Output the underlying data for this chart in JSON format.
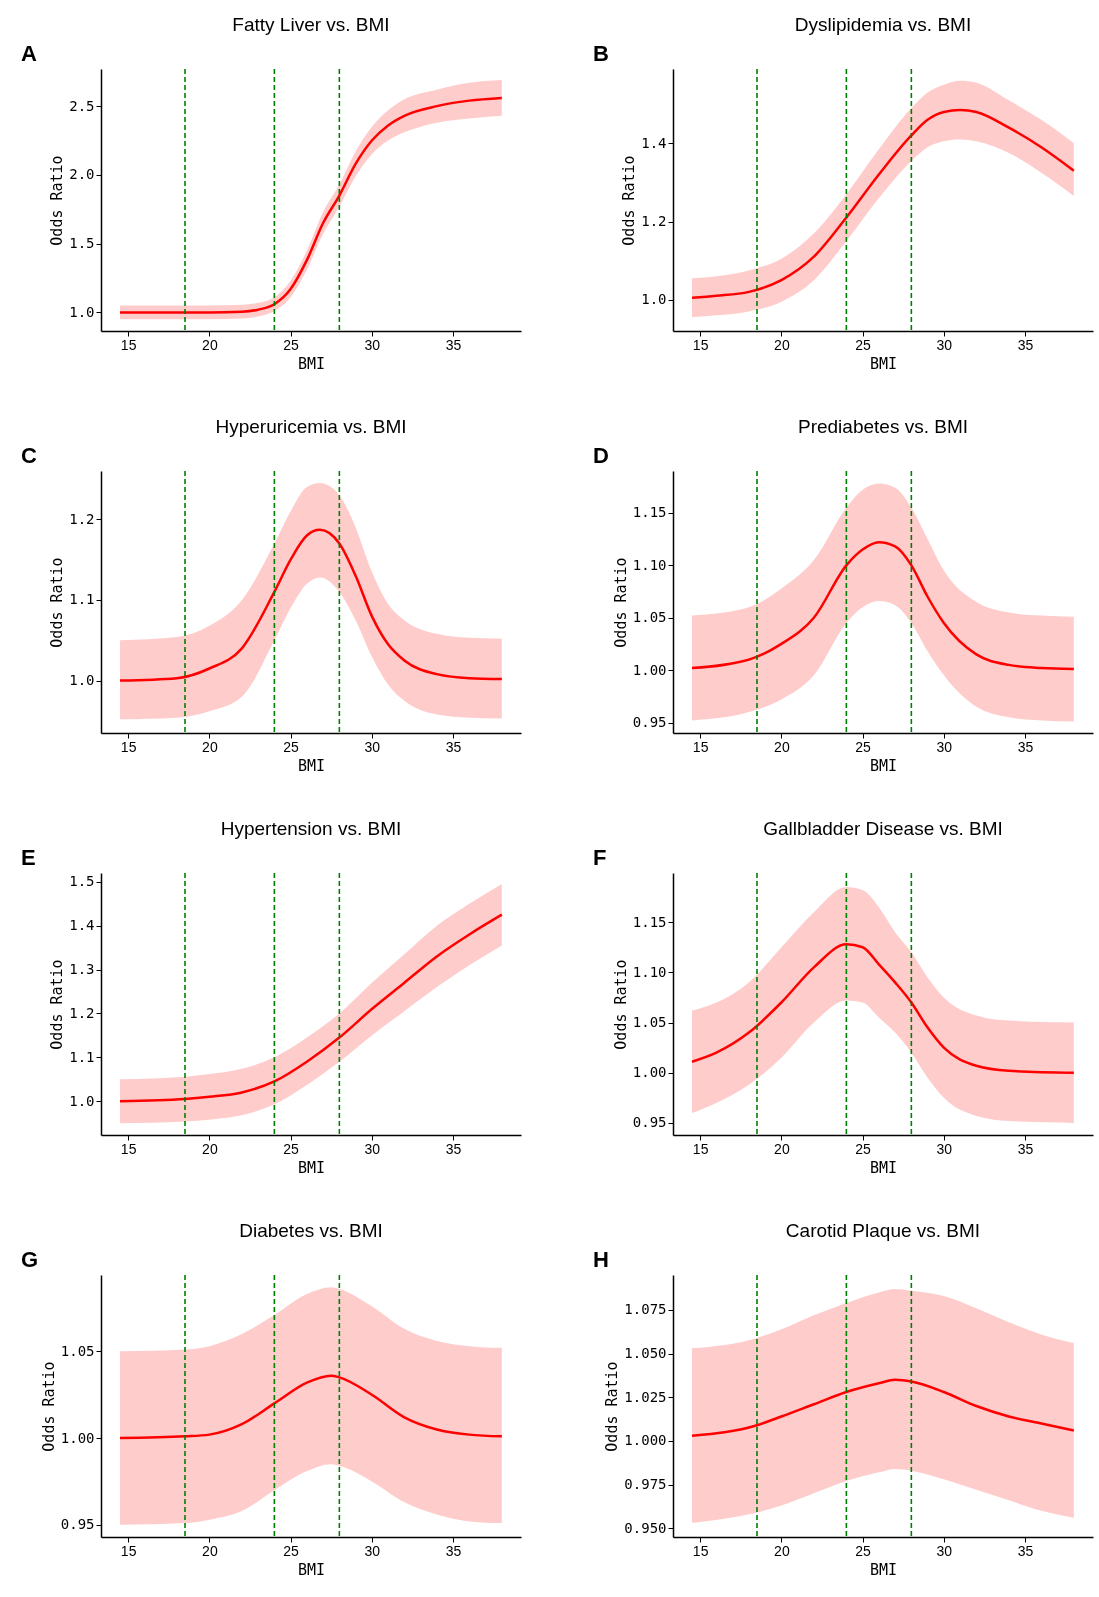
{
  "chart_data": [
    {
      "type": "line",
      "title": "Fatty Liver vs. BMI",
      "xlabel": "BMI",
      "ylabel": "Odds Ratio",
      "annotations": [
        "A"
      ],
      "xlim": [
        13.33,
        39.18
      ],
      "ylim": [
        0.865,
        2.77
      ],
      "xticks": [
        15,
        20,
        25,
        30,
        35
      ],
      "yticks": [
        {
          "value": 1,
          "label": "1.0"
        },
        1.5,
        {
          "value": 2,
          "label": "2.0"
        },
        2.5
      ],
      "grid": false,
      "legend": false,
      "ref_lines": [
        {
          "axis": "x",
          "value": 18.5,
          "color": "#008000",
          "line_style": "dashed"
        },
        {
          "axis": "x",
          "value": 24,
          "color": "#008000",
          "line_style": "dashed"
        },
        {
          "axis": "x",
          "value": 28,
          "color": "#008000",
          "line_style": "dashed"
        }
      ],
      "series": [
        {
          "color": "#ff0000",
          "line_style": "solid",
          "x": [
            14.5,
            18,
            20,
            22,
            23,
            24,
            25,
            26,
            27,
            28,
            29,
            30,
            31,
            32,
            34,
            36,
            38
          ],
          "values": [
            1.0,
            1.0,
            1.0,
            1.005,
            1.02,
            1.06,
            1.17,
            1.38,
            1.65,
            1.85,
            2.08,
            2.25,
            2.36,
            2.43,
            2.5,
            2.54,
            2.56
          ],
          "lower": [
            0.95,
            0.95,
            0.95,
            0.955,
            0.97,
            1.01,
            1.11,
            1.31,
            1.57,
            1.77,
            1.99,
            2.15,
            2.25,
            2.31,
            2.38,
            2.41,
            2.43
          ],
          "upper": [
            1.05,
            1.05,
            1.05,
            1.055,
            1.07,
            1.11,
            1.23,
            1.45,
            1.73,
            1.93,
            2.17,
            2.35,
            2.47,
            2.55,
            2.62,
            2.67,
            2.69
          ]
        }
      ]
    },
    {
      "type": "line",
      "title": "Dyslipidemia vs. BMI",
      "xlabel": "BMI",
      "ylabel": "Odds Ratio",
      "annotations": [
        "B"
      ],
      "xlim": [
        13.33,
        39.18
      ],
      "ylim": [
        0.92,
        1.59
      ],
      "xticks": [
        15,
        20,
        25,
        30,
        35
      ],
      "yticks": [
        {
          "value": 1,
          "label": "1.0"
        },
        1.2,
        1.4
      ],
      "grid": false,
      "legend": false,
      "ref_lines": [
        {
          "axis": "x",
          "value": 18.5,
          "color": "#008000",
          "line_style": "dashed"
        },
        {
          "axis": "x",
          "value": 24,
          "color": "#008000",
          "line_style": "dashed"
        },
        {
          "axis": "x",
          "value": 28,
          "color": "#008000",
          "line_style": "dashed"
        }
      ],
      "series": [
        {
          "color": "#ff0000",
          "line_style": "solid",
          "x": [
            14.5,
            16,
            18,
            20,
            22,
            24,
            26,
            28,
            29,
            30,
            31,
            32,
            34,
            36,
            38
          ],
          "values": [
            1.005,
            1.01,
            1.02,
            1.05,
            1.11,
            1.21,
            1.32,
            1.42,
            1.46,
            1.48,
            1.485,
            1.48,
            1.44,
            1.39,
            1.33
          ],
          "lower": [
            0.955,
            0.96,
            0.97,
            0.995,
            1.05,
            1.15,
            1.26,
            1.355,
            1.39,
            1.405,
            1.41,
            1.405,
            1.375,
            1.325,
            1.265
          ],
          "upper": [
            1.055,
            1.06,
            1.075,
            1.105,
            1.17,
            1.27,
            1.385,
            1.49,
            1.53,
            1.55,
            1.56,
            1.555,
            1.51,
            1.46,
            1.4
          ]
        }
      ]
    },
    {
      "type": "line",
      "title": "Hyperuricemia vs. BMI",
      "xlabel": "BMI",
      "ylabel": "Odds Ratio",
      "annotations": [
        "C"
      ],
      "xlim": [
        13.33,
        39.18
      ],
      "ylim": [
        0.935,
        1.26
      ],
      "xticks": [
        15,
        20,
        25,
        30,
        35
      ],
      "yticks": [
        {
          "value": 1,
          "label": "1.0"
        },
        1.1,
        1.2
      ],
      "grid": false,
      "legend": false,
      "ref_lines": [
        {
          "axis": "x",
          "value": 18.5,
          "color": "#008000",
          "line_style": "dashed"
        },
        {
          "axis": "x",
          "value": 24,
          "color": "#008000",
          "line_style": "dashed"
        },
        {
          "axis": "x",
          "value": 28,
          "color": "#008000",
          "line_style": "dashed"
        }
      ],
      "series": [
        {
          "color": "#ff0000",
          "line_style": "solid",
          "x": [
            14.5,
            18,
            20,
            22,
            24,
            25,
            26,
            26.8,
            28,
            29,
            30,
            31,
            32,
            34,
            36,
            38
          ],
          "values": [
            1.0,
            1.003,
            1.015,
            1.04,
            1.11,
            1.15,
            1.18,
            1.187,
            1.17,
            1.13,
            1.08,
            1.045,
            1.025,
            1.008,
            1.003,
            1.002
          ],
          "lower": [
            0.952,
            0.954,
            0.962,
            0.98,
            1.05,
            1.09,
            1.12,
            1.128,
            1.11,
            1.075,
            1.03,
            0.995,
            0.975,
            0.958,
            0.954,
            0.953
          ],
          "upper": [
            1.05,
            1.054,
            1.068,
            1.1,
            1.17,
            1.21,
            1.24,
            1.245,
            1.23,
            1.19,
            1.135,
            1.095,
            1.075,
            1.058,
            1.053,
            1.052
          ]
        }
      ]
    },
    {
      "type": "line",
      "title": "Prediabetes vs. BMI",
      "xlabel": "BMI",
      "ylabel": "Odds Ratio",
      "annotations": [
        "D"
      ],
      "xlim": [
        13.33,
        39.18
      ],
      "ylim": [
        0.94,
        1.19
      ],
      "xticks": [
        15,
        20,
        25,
        30,
        35
      ],
      "yticks": [
        0.95,
        {
          "value": 1,
          "label": "1.00"
        },
        1.05,
        {
          "value": 1.1,
          "label": "1.10"
        },
        1.15
      ],
      "grid": false,
      "legend": false,
      "ref_lines": [
        {
          "axis": "x",
          "value": 18.5,
          "color": "#008000",
          "line_style": "dashed"
        },
        {
          "axis": "x",
          "value": 24,
          "color": "#008000",
          "line_style": "dashed"
        },
        {
          "axis": "x",
          "value": 28,
          "color": "#008000",
          "line_style": "dashed"
        }
      ],
      "series": [
        {
          "color": "#ff0000",
          "line_style": "solid",
          "x": [
            14.5,
            18,
            20,
            22,
            24,
            25,
            26,
            27,
            28,
            29,
            30,
            32,
            34,
            36,
            38
          ],
          "values": [
            1.002,
            1.01,
            1.025,
            1.05,
            1.1,
            1.115,
            1.122,
            1.118,
            1.1,
            1.07,
            1.045,
            1.015,
            1.005,
            1.002,
            1.001
          ],
          "lower": [
            0.952,
            0.96,
            0.972,
            0.995,
            1.045,
            1.06,
            1.066,
            1.062,
            1.045,
            1.018,
            0.995,
            0.965,
            0.955,
            0.952,
            0.951
          ],
          "upper": [
            1.052,
            1.06,
            1.078,
            1.105,
            1.155,
            1.172,
            1.178,
            1.174,
            1.155,
            1.125,
            1.095,
            1.065,
            1.055,
            1.052,
            1.051
          ]
        }
      ]
    },
    {
      "type": "line",
      "title": "Hypertension vs. BMI",
      "xlabel": "BMI",
      "ylabel": "Odds Ratio",
      "annotations": [
        "E"
      ],
      "xlim": [
        13.33,
        39.18
      ],
      "ylim": [
        0.923,
        1.52
      ],
      "xticks": [
        15,
        20,
        25,
        30,
        35
      ],
      "yticks": [
        {
          "value": 1,
          "label": "1.0"
        },
        1.1,
        1.2,
        1.3,
        1.4,
        1.5
      ],
      "grid": false,
      "legend": false,
      "ref_lines": [
        {
          "axis": "x",
          "value": 18.5,
          "color": "#008000",
          "line_style": "dashed"
        },
        {
          "axis": "x",
          "value": 24,
          "color": "#008000",
          "line_style": "dashed"
        },
        {
          "axis": "x",
          "value": 28,
          "color": "#008000",
          "line_style": "dashed"
        }
      ],
      "series": [
        {
          "color": "#ff0000",
          "line_style": "solid",
          "x": [
            14.5,
            18.5,
            20,
            22,
            24,
            26,
            28,
            30,
            32,
            34,
            36,
            38
          ],
          "values": [
            1.0,
            1.005,
            1.01,
            1.02,
            1.045,
            1.09,
            1.145,
            1.21,
            1.27,
            1.33,
            1.38,
            1.425
          ],
          "lower": [
            0.95,
            0.954,
            0.958,
            0.968,
            0.993,
            1.037,
            1.09,
            1.15,
            1.205,
            1.26,
            1.31,
            1.355
          ],
          "upper": [
            1.05,
            1.056,
            1.062,
            1.074,
            1.1,
            1.145,
            1.2,
            1.27,
            1.335,
            1.4,
            1.45,
            1.495
          ]
        }
      ]
    },
    {
      "type": "line",
      "title": "Gallbladder Disease vs. BMI",
      "xlabel": "BMI",
      "ylabel": "Odds Ratio",
      "annotations": [
        "F"
      ],
      "xlim": [
        13.33,
        39.18
      ],
      "ylim": [
        0.938,
        1.199
      ],
      "xticks": [
        15,
        20,
        25,
        30,
        35
      ],
      "yticks": [
        0.95,
        {
          "value": 1,
          "label": "1.00"
        },
        1.05,
        {
          "value": 1.1,
          "label": "1.10"
        },
        1.15
      ],
      "grid": false,
      "legend": false,
      "ref_lines": [
        {
          "axis": "x",
          "value": 18.5,
          "color": "#008000",
          "line_style": "dashed"
        },
        {
          "axis": "x",
          "value": 24,
          "color": "#008000",
          "line_style": "dashed"
        },
        {
          "axis": "x",
          "value": 28,
          "color": "#008000",
          "line_style": "dashed"
        }
      ],
      "series": [
        {
          "color": "#ff0000",
          "line_style": "solid",
          "x": [
            14.5,
            16,
            18,
            20,
            22,
            24,
            25,
            26,
            27,
            28,
            29,
            30,
            32,
            34,
            38
          ],
          "values": [
            1.011,
            1.02,
            1.04,
            1.07,
            1.105,
            1.128,
            1.125,
            1.108,
            1.09,
            1.07,
            1.045,
            1.025,
            1.007,
            1.002,
            1.0
          ],
          "lower": [
            0.96,
            0.97,
            0.988,
            1.015,
            1.05,
            1.072,
            1.07,
            1.055,
            1.04,
            1.02,
            0.995,
            0.975,
            0.957,
            0.952,
            0.95
          ],
          "upper": [
            1.062,
            1.07,
            1.09,
            1.125,
            1.16,
            1.185,
            1.182,
            1.165,
            1.14,
            1.12,
            1.095,
            1.075,
            1.057,
            1.052,
            1.05
          ]
        }
      ]
    },
    {
      "type": "line",
      "title": "Diabetes vs. BMI",
      "xlabel": "BMI",
      "ylabel": "Odds Ratio",
      "annotations": [
        "G"
      ],
      "xlim": [
        13.33,
        39.18
      ],
      "ylim": [
        0.943,
        1.094
      ],
      "xticks": [
        15,
        20,
        25,
        30,
        35
      ],
      "yticks": [
        0.95,
        {
          "value": 1,
          "label": "1.00"
        },
        1.05
      ],
      "grid": false,
      "legend": false,
      "ref_lines": [
        {
          "axis": "x",
          "value": 18.5,
          "color": "#008000",
          "line_style": "dashed"
        },
        {
          "axis": "x",
          "value": 24,
          "color": "#008000",
          "line_style": "dashed"
        },
        {
          "axis": "x",
          "value": 28,
          "color": "#008000",
          "line_style": "dashed"
        }
      ],
      "series": [
        {
          "color": "#ff0000",
          "line_style": "solid",
          "x": [
            14.5,
            18.5,
            20,
            22,
            24,
            26,
            27.5,
            28,
            30,
            32,
            34,
            36,
            38
          ],
          "values": [
            1.0,
            1.001,
            1.002,
            1.008,
            1.02,
            1.032,
            1.036,
            1.035,
            1.025,
            1.012,
            1.005,
            1.002,
            1.001
          ],
          "lower": [
            0.95,
            0.951,
            0.953,
            0.958,
            0.97,
            0.981,
            0.985,
            0.984,
            0.975,
            0.963,
            0.956,
            0.952,
            0.951
          ],
          "upper": [
            1.05,
            1.051,
            1.053,
            1.06,
            1.071,
            1.083,
            1.087,
            1.086,
            1.076,
            1.063,
            1.056,
            1.053,
            1.052
          ]
        }
      ]
    },
    {
      "type": "line",
      "title": "Carotid Plaque vs. BMI",
      "xlabel": "BMI",
      "ylabel": "Odds Ratio",
      "annotations": [
        "H"
      ],
      "xlim": [
        13.33,
        39.18
      ],
      "ylim": [
        0.945,
        1.095
      ],
      "xticks": [
        15,
        20,
        25,
        30,
        35
      ],
      "yticks": [
        {
          "value": 0.95,
          "label": "0.950"
        },
        0.975,
        {
          "value": 1,
          "label": "1.000"
        },
        1.025,
        {
          "value": 1.05,
          "label": "1.050"
        },
        1.075
      ],
      "grid": false,
      "legend": false,
      "ref_lines": [
        {
          "axis": "x",
          "value": 18.5,
          "color": "#008000",
          "line_style": "dashed"
        },
        {
          "axis": "x",
          "value": 24,
          "color": "#008000",
          "line_style": "dashed"
        },
        {
          "axis": "x",
          "value": 28,
          "color": "#008000",
          "line_style": "dashed"
        }
      ],
      "series": [
        {
          "color": "#ff0000",
          "line_style": "solid",
          "x": [
            14.5,
            18.5,
            20,
            22,
            24,
            26,
            27,
            28,
            30,
            32,
            34,
            36,
            38
          ],
          "values": [
            1.003,
            1.009,
            1.014,
            1.021,
            1.028,
            1.033,
            1.035,
            1.034,
            1.028,
            1.02,
            1.014,
            1.01,
            1.006
          ],
          "lower": [
            0.953,
            0.959,
            0.963,
            0.97,
            0.977,
            0.982,
            0.984,
            0.983,
            0.978,
            0.972,
            0.966,
            0.96,
            0.956
          ],
          "upper": [
            1.053,
            1.059,
            1.064,
            1.072,
            1.079,
            1.085,
            1.087,
            1.086,
            1.083,
            1.076,
            1.068,
            1.061,
            1.056
          ]
        }
      ]
    }
  ]
}
